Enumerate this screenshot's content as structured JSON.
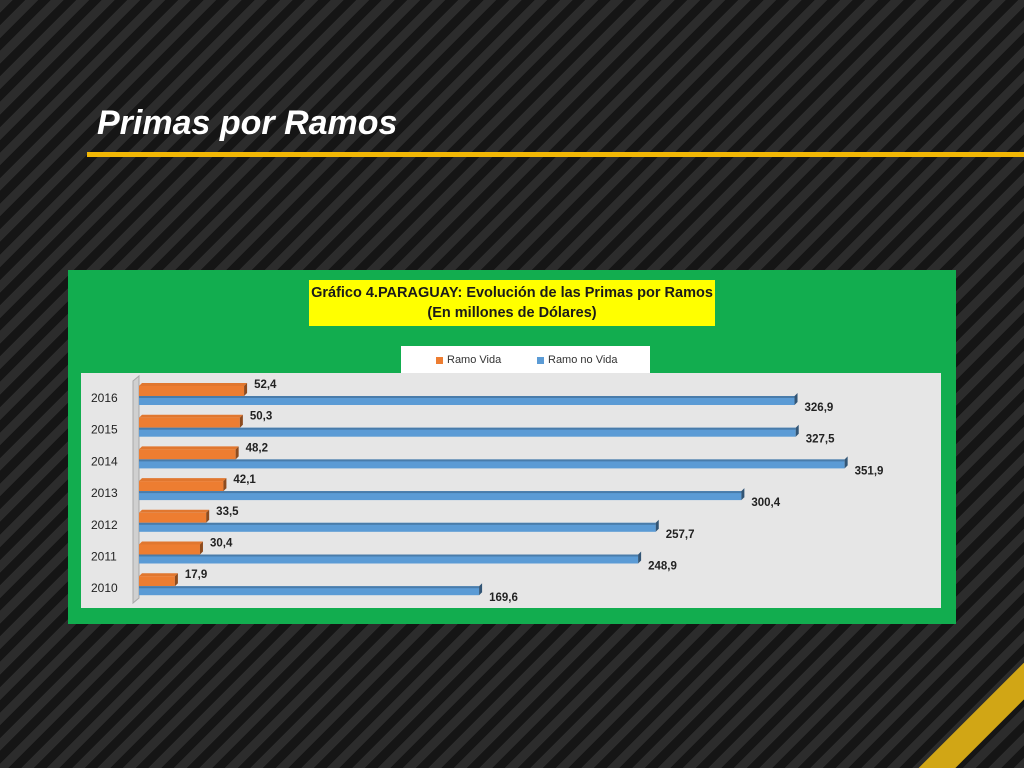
{
  "slide": {
    "title": "Primas por Ramos"
  },
  "colors": {
    "accent_rule": "#f2b705",
    "panel_green": "#12ad4f",
    "title_box": "#ffff00",
    "ramo_vida": "#ed7d31",
    "ramo_no_vida": "#5b9bd5"
  },
  "chart_data": {
    "type": "bar",
    "orientation": "horizontal",
    "title": "Gráfico 4.PARAGUAY: Evolución de las Primas por Ramos",
    "subtitle": "(En millones de Dólares)",
    "categories": [
      "2016",
      "2015",
      "2014",
      "2013",
      "2012",
      "2011",
      "2010"
    ],
    "series": [
      {
        "name": "Ramo Vida",
        "color": "#ed7d31",
        "values": [
          52.4,
          50.3,
          48.2,
          42.1,
          33.5,
          30.4,
          17.9
        ],
        "labels": [
          "52,4",
          "50,3",
          "48,2",
          "42,1",
          "33,5",
          "30,4",
          "17,9"
        ]
      },
      {
        "name": "Ramo no Vida",
        "color": "#5b9bd5",
        "values": [
          326.9,
          327.5,
          351.9,
          300.4,
          257.7,
          248.9,
          169.6
        ],
        "labels": [
          "326,9",
          "327,5",
          "351,9",
          "300,4",
          "257,7",
          "248,9",
          "169,6"
        ]
      }
    ],
    "legend_position": "top",
    "grid": false,
    "xlim": [
      0,
      380
    ]
  }
}
